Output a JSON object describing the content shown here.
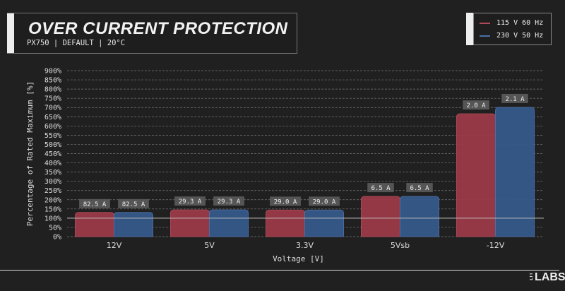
{
  "header": {
    "title": "OVER CURRENT PROTECTION",
    "subtitle": "PX750 | DEFAULT | 20°C"
  },
  "logo": {
    "small": "LTT",
    "text": "LABS"
  },
  "chart_data": {
    "type": "bar",
    "title": "OVER CURRENT PROTECTION",
    "xlabel": "Voltage [V]",
    "ylabel": "Percentage of Rated Maximum [%]",
    "ylim": [
      0,
      900
    ],
    "yticks": [
      0,
      50,
      100,
      150,
      200,
      250,
      300,
      350,
      400,
      450,
      500,
      550,
      600,
      650,
      700,
      750,
      800,
      850,
      900
    ],
    "ytick_suffix": "%",
    "reference_line": 100,
    "grid": true,
    "legend_position": "top-right",
    "categories": [
      "12V",
      "5V",
      "3.3V",
      "5Vsb",
      "-12V"
    ],
    "series": [
      {
        "name": "115 V 60 Hz",
        "color": "#9b3a48",
        "values": [
          131,
          145,
          144,
          218,
          666
        ],
        "labels": [
          "82.5 A",
          "29.3 A",
          "29.0 A",
          "6.5 A",
          "2.0 A"
        ]
      },
      {
        "name": "230 V 50 Hz",
        "color": "#36598a",
        "values": [
          131,
          145,
          144,
          218,
          701
        ],
        "labels": [
          "82.5 A",
          "29.3 A",
          "29.0 A",
          "6.5 A",
          "2.1 A"
        ]
      }
    ]
  }
}
